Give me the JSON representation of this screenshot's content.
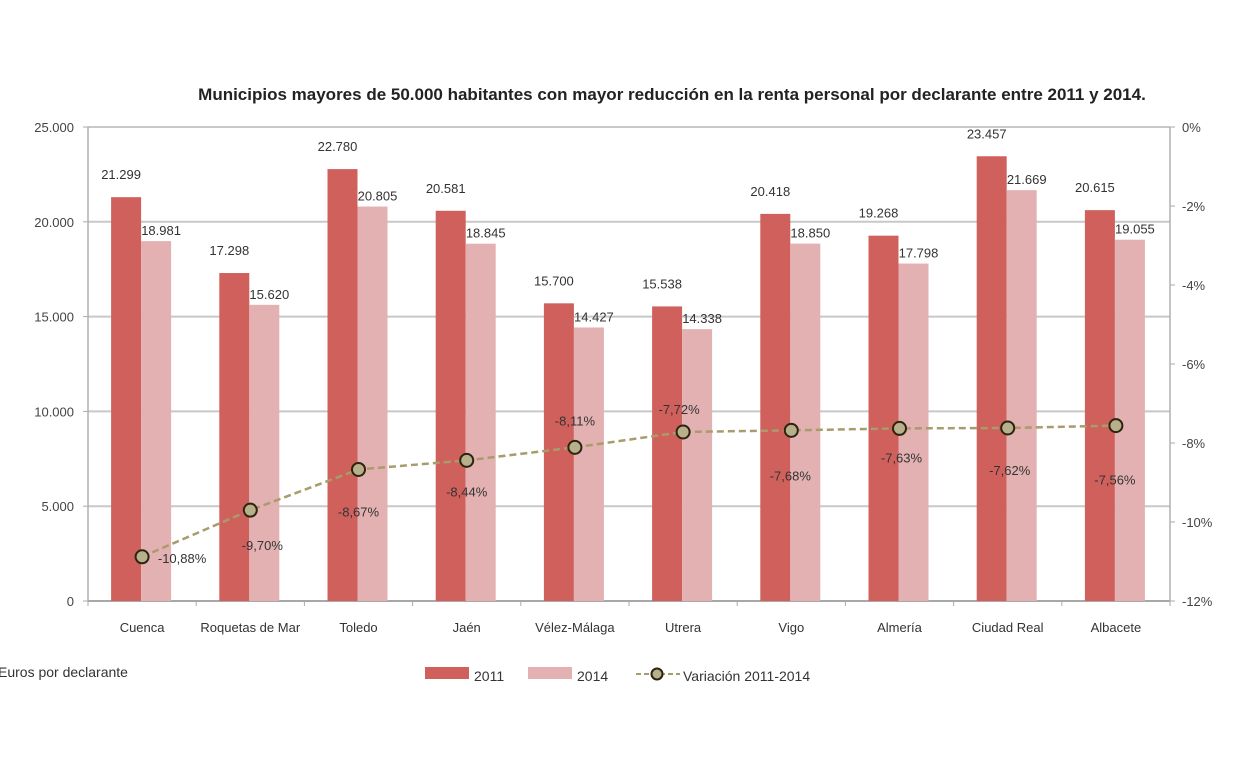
{
  "chart_data": {
    "type": "bar",
    "title": "Municipios mayores de 50.000 habitantes  con mayor reducción en la renta personal por declarante entre 2011 y 2014.",
    "ylabel": "Euros por declarante",
    "ylabel_right": "",
    "xlabel": "",
    "categories": [
      "Cuenca",
      "Roquetas de Mar",
      "Toledo",
      "Jaén",
      "Vélez-Málaga",
      "Utrera",
      "Vigo",
      "Almería",
      "Ciudad Real",
      "Albacete"
    ],
    "series": [
      {
        "name": "2011",
        "type": "bar",
        "axis": "left",
        "color": "#d0605c",
        "values": [
          21299,
          17298,
          22780,
          20581,
          15700,
          15538,
          20418,
          19268,
          23457,
          20615
        ],
        "labels": [
          "21.299",
          "17.298",
          "22.780",
          "20.581",
          "15.700",
          "15.538",
          "20.418",
          "19.268",
          "23.457",
          "20.615"
        ]
      },
      {
        "name": "2014",
        "type": "bar",
        "axis": "left",
        "color": "#e3b1b1",
        "values": [
          18981,
          15620,
          20805,
          18845,
          14427,
          14338,
          18850,
          17798,
          21669,
          19055
        ],
        "labels": [
          "18.981",
          "15.620",
          "20.805",
          "18.845",
          "14.427",
          "14.338",
          "18.850",
          "17.798",
          "21.669",
          "19.055"
        ]
      },
      {
        "name": "Variación 2011-2014",
        "type": "line",
        "axis": "right",
        "line_color": "#a89c6c",
        "marker_fill": "#b7b08a",
        "marker_stroke": "#2b2410",
        "values": [
          -10.88,
          -9.7,
          -8.67,
          -8.44,
          -8.11,
          -7.72,
          -7.68,
          -7.63,
          -7.62,
          -7.56
        ],
        "labels": [
          "-10,88%",
          "-9,70%",
          "-8,67%",
          "-8,44%",
          "-8,11%",
          "-7,72%",
          "-7,68%",
          "-7,63%",
          "-7,62%",
          "-7,56%"
        ]
      }
    ],
    "ylim": [
      0,
      25000
    ],
    "yticks": [
      0,
      5000,
      10000,
      15000,
      20000,
      25000
    ],
    "ytick_labels": [
      "0",
      "5.000",
      "10.000",
      "15.000",
      "20.000",
      "25.000"
    ],
    "y2lim": [
      -12,
      0
    ],
    "y2ticks": [
      -12,
      -10,
      -8,
      -6,
      -4,
      -2,
      0
    ],
    "y2tick_labels": [
      "-12%",
      "-10%",
      "-8%",
      "-6%",
      "-4%",
      "-2%",
      "0%"
    ],
    "grid": true,
    "legend": {
      "position": "bottom-center",
      "entries": [
        "2011",
        "2014",
        "Variación 2011-2014"
      ]
    }
  }
}
